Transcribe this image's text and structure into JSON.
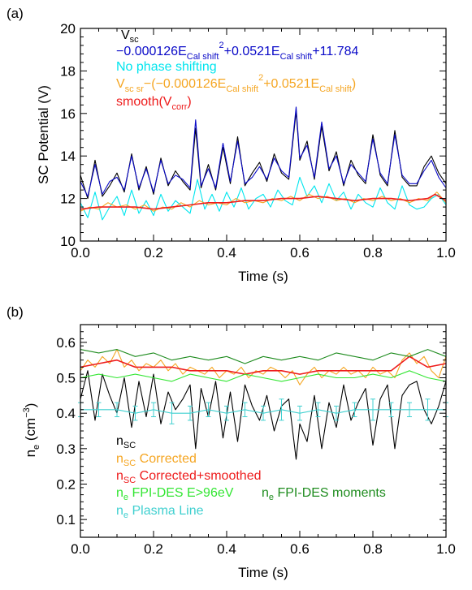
{
  "chart_data": [
    {
      "type": "line",
      "panel_label": "(a)",
      "xlabel": "Time (s)",
      "ylabel": "SC Potential (V)",
      "xlim": [
        0,
        1
      ],
      "ylim": [
        10,
        20
      ],
      "xticks": [
        "0.0",
        "0.2",
        "0.4",
        "0.6",
        "0.8",
        "1.0"
      ],
      "yticks": [
        "10",
        "12",
        "14",
        "16",
        "18",
        "20"
      ],
      "legend_position": "top-left",
      "colors": {
        "vsc": "#000000",
        "cal": "#0a0ac8",
        "nophase": "#00e5ee",
        "corrected": "#f5a623",
        "smooth": "#ee1c1c"
      },
      "legend": {
        "vsc": {
          "main": "V",
          "sub": "sc"
        },
        "cal": {
          "t1": "−0.000126E",
          "s1": "Cal shift",
          "p1": "2",
          "t2": "+0.0521E",
          "s2": "Cal shift",
          "t3": "+11.784"
        },
        "nophase": "No phase shifting",
        "corrected": {
          "t1": "V",
          "s1": "sc sr",
          "t2": "−(−0.000126E",
          "s2": "Cal shift",
          "p2": "2",
          "t3": "+0.0521E",
          "s3": "Cal shift",
          "t4": ")"
        },
        "smooth": {
          "t1": "smooth(V",
          "s1": "corr",
          "t2": ")"
        }
      },
      "series": [
        {
          "key": "vsc",
          "x": [
            0.0,
            0.02,
            0.04,
            0.06,
            0.08,
            0.1,
            0.12,
            0.14,
            0.16,
            0.18,
            0.2,
            0.22,
            0.24,
            0.26,
            0.28,
            0.3,
            0.315,
            0.33,
            0.35,
            0.37,
            0.39,
            0.41,
            0.43,
            0.45,
            0.47,
            0.49,
            0.51,
            0.53,
            0.55,
            0.57,
            0.59,
            0.6,
            0.62,
            0.64,
            0.66,
            0.68,
            0.7,
            0.72,
            0.74,
            0.76,
            0.78,
            0.8,
            0.82,
            0.84,
            0.86,
            0.88,
            0.9,
            0.92,
            0.94,
            0.96,
            0.98,
            1.0
          ],
          "y": [
            13.1,
            12.0,
            13.8,
            12.1,
            12.6,
            13.2,
            12.3,
            14.1,
            12.4,
            13.5,
            12.2,
            13.9,
            12.6,
            13.3,
            12.8,
            12.4,
            15.3,
            12.5,
            13.6,
            12.4,
            14.4,
            12.7,
            14.9,
            12.6,
            13.2,
            13.7,
            12.8,
            14.1,
            13.2,
            12.9,
            16.1,
            13.8,
            14.7,
            12.9,
            15.4,
            13.3,
            14.2,
            12.6,
            13.8,
            13.1,
            12.7,
            15.0,
            13.1,
            12.6,
            15.2,
            13.0,
            12.6,
            12.6,
            13.5,
            14.0,
            13.2,
            12.7
          ]
        },
        {
          "key": "cal",
          "x": [
            0.0,
            0.02,
            0.04,
            0.06,
            0.08,
            0.1,
            0.12,
            0.14,
            0.16,
            0.18,
            0.2,
            0.22,
            0.24,
            0.26,
            0.28,
            0.3,
            0.315,
            0.33,
            0.35,
            0.37,
            0.39,
            0.41,
            0.43,
            0.45,
            0.47,
            0.49,
            0.51,
            0.53,
            0.55,
            0.57,
            0.59,
            0.6,
            0.62,
            0.64,
            0.66,
            0.68,
            0.7,
            0.72,
            0.74,
            0.76,
            0.78,
            0.8,
            0.82,
            0.84,
            0.86,
            0.88,
            0.9,
            0.92,
            0.94,
            0.96,
            0.98,
            1.0
          ],
          "y": [
            12.8,
            12.1,
            13.6,
            12.2,
            12.8,
            13.0,
            12.4,
            14.0,
            12.5,
            13.4,
            12.3,
            13.8,
            12.7,
            13.1,
            12.9,
            12.5,
            15.7,
            12.6,
            13.4,
            12.5,
            14.6,
            12.8,
            14.7,
            12.7,
            13.0,
            13.5,
            12.9,
            13.9,
            13.3,
            13.0,
            16.3,
            13.9,
            14.5,
            13.0,
            15.6,
            13.4,
            14.0,
            12.7,
            13.6,
            13.2,
            12.8,
            14.8,
            13.2,
            12.7,
            15.0,
            13.1,
            12.7,
            12.7,
            13.3,
            13.8,
            13.0,
            12.5
          ]
        },
        {
          "key": "nophase",
          "x": [
            0.0,
            0.02,
            0.04,
            0.06,
            0.08,
            0.1,
            0.12,
            0.14,
            0.16,
            0.18,
            0.2,
            0.22,
            0.24,
            0.26,
            0.28,
            0.3,
            0.32,
            0.34,
            0.36,
            0.38,
            0.4,
            0.42,
            0.44,
            0.46,
            0.48,
            0.5,
            0.52,
            0.54,
            0.56,
            0.58,
            0.6,
            0.62,
            0.64,
            0.66,
            0.68,
            0.7,
            0.72,
            0.74,
            0.76,
            0.78,
            0.8,
            0.82,
            0.84,
            0.86,
            0.88,
            0.9,
            0.92,
            0.94,
            0.96,
            0.98,
            1.0
          ],
          "y": [
            11.8,
            11.1,
            12.3,
            11.0,
            11.6,
            12.1,
            11.2,
            12.4,
            11.3,
            11.9,
            11.2,
            12.2,
            11.4,
            11.9,
            11.6,
            11.3,
            12.9,
            11.5,
            12.2,
            11.4,
            12.3,
            11.6,
            12.5,
            11.5,
            12.0,
            12.2,
            11.6,
            12.4,
            11.9,
            11.7,
            13.0,
            12.1,
            12.6,
            11.8,
            12.7,
            11.9,
            12.3,
            11.5,
            12.2,
            11.8,
            11.6,
            12.5,
            11.8,
            11.5,
            12.6,
            11.7,
            11.5,
            11.6,
            12.0,
            12.2,
            11.7
          ]
        },
        {
          "key": "corrected",
          "x": [
            0.0,
            0.025,
            0.05,
            0.075,
            0.1,
            0.125,
            0.15,
            0.175,
            0.2,
            0.225,
            0.25,
            0.275,
            0.3,
            0.325,
            0.35,
            0.375,
            0.4,
            0.425,
            0.45,
            0.475,
            0.5,
            0.525,
            0.55,
            0.575,
            0.6,
            0.625,
            0.65,
            0.675,
            0.7,
            0.725,
            0.75,
            0.775,
            0.8,
            0.825,
            0.85,
            0.875,
            0.9,
            0.925,
            0.95,
            0.975,
            1.0
          ],
          "y": [
            11.4,
            11.6,
            11.5,
            11.8,
            11.6,
            11.7,
            11.5,
            11.7,
            11.4,
            11.6,
            11.5,
            11.8,
            11.6,
            11.9,
            11.7,
            11.8,
            11.7,
            12.0,
            11.8,
            11.9,
            11.8,
            12.0,
            11.9,
            12.1,
            11.9,
            12.2,
            12.0,
            12.1,
            11.9,
            12.0,
            11.8,
            12.0,
            11.9,
            12.1,
            11.9,
            12.0,
            11.8,
            12.0,
            11.9,
            12.3,
            11.8
          ]
        },
        {
          "key": "smooth",
          "x": [
            0.0,
            0.05,
            0.1,
            0.15,
            0.2,
            0.25,
            0.3,
            0.35,
            0.4,
            0.45,
            0.5,
            0.55,
            0.6,
            0.65,
            0.7,
            0.75,
            0.8,
            0.85,
            0.9,
            0.95,
            0.97,
            1.0
          ],
          "y": [
            11.5,
            11.6,
            11.6,
            11.6,
            11.5,
            11.6,
            11.7,
            11.8,
            11.8,
            11.9,
            11.9,
            12.0,
            12.0,
            12.1,
            12.0,
            11.9,
            12.0,
            12.0,
            11.9,
            12.0,
            12.2,
            11.9
          ]
        }
      ]
    },
    {
      "type": "line",
      "panel_label": "(b)",
      "xlabel": "Time (s)",
      "ylabel": {
        "t1": "n",
        "s1": "e",
        "t2": " (cm",
        "p2": "−3",
        "t3": ")"
      },
      "xlim": [
        0,
        1
      ],
      "ylim": [
        0.05,
        0.65
      ],
      "xticks": [
        "0.0",
        "0.2",
        "0.4",
        "0.6",
        "0.8",
        "1.0"
      ],
      "yticks": [
        "0.1",
        "0.2",
        "0.3",
        "0.4",
        "0.5",
        "0.6"
      ],
      "legend_position": "bottom-left",
      "colors": {
        "nsc": "#000000",
        "corrected": "#f5a623",
        "smoothed": "#ee1c1c",
        "fpi_e96": "#33e633",
        "fpi_moments": "#1f8c1f",
        "plasma_line": "#40d0d0"
      },
      "legend": {
        "nsc": {
          "t1": "n",
          "s1": "SC"
        },
        "corrected": {
          "t1": "n",
          "s1": "SC",
          "t2": " Corrected"
        },
        "smoothed": {
          "t1": "n",
          "s1": "SC",
          "t2": " Corrected+smoothed"
        },
        "fpi_e96": {
          "t1": "n",
          "s1": "e",
          "t2": " FPI-DES E>96eV"
        },
        "fpi_moments": {
          "t1": "n",
          "s1": "e",
          "t2": " FPI-DES moments"
        },
        "plasma_line": {
          "t1": "n",
          "s1": "e",
          "t2": " Plasma Line"
        }
      },
      "series": [
        {
          "key": "nsc",
          "x": [
            0.0,
            0.02,
            0.04,
            0.06,
            0.08,
            0.1,
            0.12,
            0.14,
            0.16,
            0.18,
            0.2,
            0.22,
            0.24,
            0.26,
            0.28,
            0.3,
            0.315,
            0.33,
            0.35,
            0.37,
            0.39,
            0.41,
            0.43,
            0.45,
            0.47,
            0.49,
            0.51,
            0.53,
            0.55,
            0.57,
            0.59,
            0.6,
            0.62,
            0.64,
            0.66,
            0.68,
            0.7,
            0.72,
            0.74,
            0.76,
            0.78,
            0.8,
            0.82,
            0.84,
            0.86,
            0.88,
            0.9,
            0.92,
            0.94,
            0.96,
            0.98,
            1.0
          ],
          "y": [
            0.44,
            0.52,
            0.38,
            0.51,
            0.45,
            0.4,
            0.5,
            0.36,
            0.49,
            0.39,
            0.51,
            0.37,
            0.46,
            0.41,
            0.44,
            0.48,
            0.3,
            0.47,
            0.39,
            0.49,
            0.33,
            0.46,
            0.32,
            0.48,
            0.42,
            0.38,
            0.45,
            0.35,
            0.42,
            0.44,
            0.27,
            0.37,
            0.32,
            0.45,
            0.3,
            0.43,
            0.36,
            0.48,
            0.38,
            0.43,
            0.47,
            0.31,
            0.44,
            0.48,
            0.3,
            0.45,
            0.48,
            0.49,
            0.41,
            0.37,
            0.42,
            0.49
          ]
        },
        {
          "key": "corrected",
          "x": [
            0.0,
            0.02,
            0.04,
            0.06,
            0.08,
            0.1,
            0.12,
            0.14,
            0.16,
            0.18,
            0.2,
            0.22,
            0.24,
            0.26,
            0.28,
            0.3,
            0.32,
            0.34,
            0.36,
            0.38,
            0.4,
            0.42,
            0.44,
            0.46,
            0.48,
            0.5,
            0.52,
            0.54,
            0.56,
            0.58,
            0.6,
            0.62,
            0.64,
            0.66,
            0.68,
            0.7,
            0.72,
            0.74,
            0.76,
            0.78,
            0.8,
            0.82,
            0.84,
            0.86,
            0.88,
            0.9,
            0.92,
            0.94,
            0.96,
            0.98,
            1.0
          ],
          "y": [
            0.52,
            0.55,
            0.53,
            0.56,
            0.54,
            0.58,
            0.53,
            0.55,
            0.52,
            0.54,
            0.53,
            0.55,
            0.52,
            0.54,
            0.51,
            0.53,
            0.52,
            0.51,
            0.53,
            0.5,
            0.52,
            0.51,
            0.53,
            0.5,
            0.52,
            0.51,
            0.53,
            0.52,
            0.5,
            0.52,
            0.48,
            0.51,
            0.53,
            0.5,
            0.52,
            0.51,
            0.53,
            0.51,
            0.52,
            0.5,
            0.53,
            0.51,
            0.52,
            0.5,
            0.55,
            0.57,
            0.54,
            0.56,
            0.52,
            0.5,
            0.56
          ]
        },
        {
          "key": "smoothed",
          "x": [
            0.0,
            0.05,
            0.1,
            0.15,
            0.2,
            0.25,
            0.3,
            0.35,
            0.4,
            0.45,
            0.5,
            0.55,
            0.6,
            0.65,
            0.7,
            0.75,
            0.8,
            0.85,
            0.9,
            0.95,
            1.0
          ],
          "y": [
            0.53,
            0.54,
            0.55,
            0.53,
            0.53,
            0.53,
            0.52,
            0.52,
            0.52,
            0.51,
            0.52,
            0.52,
            0.51,
            0.52,
            0.52,
            0.52,
            0.52,
            0.52,
            0.56,
            0.53,
            0.54
          ]
        },
        {
          "key": "fpi_e96",
          "x": [
            0.0,
            0.05,
            0.1,
            0.15,
            0.2,
            0.25,
            0.3,
            0.35,
            0.4,
            0.45,
            0.5,
            0.55,
            0.6,
            0.65,
            0.7,
            0.75,
            0.8,
            0.85,
            0.9,
            0.95,
            1.0
          ],
          "y": [
            0.5,
            0.51,
            0.5,
            0.51,
            0.5,
            0.49,
            0.51,
            0.5,
            0.49,
            0.51,
            0.5,
            0.49,
            0.5,
            0.51,
            0.5,
            0.5,
            0.51,
            0.5,
            0.52,
            0.5,
            0.49
          ]
        },
        {
          "key": "fpi_moments",
          "x": [
            0.0,
            0.05,
            0.1,
            0.15,
            0.2,
            0.25,
            0.3,
            0.35,
            0.4,
            0.45,
            0.5,
            0.55,
            0.6,
            0.65,
            0.7,
            0.75,
            0.8,
            0.85,
            0.9,
            0.95,
            1.0
          ],
          "y": [
            0.58,
            0.57,
            0.58,
            0.56,
            0.57,
            0.55,
            0.56,
            0.55,
            0.56,
            0.54,
            0.56,
            0.55,
            0.56,
            0.55,
            0.57,
            0.56,
            0.55,
            0.57,
            0.56,
            0.58,
            0.56
          ]
        },
        {
          "key": "plasma_line",
          "x": [
            0.0,
            0.05,
            0.1,
            0.15,
            0.2,
            0.25,
            0.3,
            0.35,
            0.4,
            0.45,
            0.5,
            0.55,
            0.6,
            0.65,
            0.7,
            0.75,
            0.8,
            0.85,
            0.9,
            0.95,
            1.0
          ],
          "y": [
            0.41,
            0.41,
            0.41,
            0.4,
            0.41,
            0.4,
            0.4,
            0.41,
            0.4,
            0.41,
            0.4,
            0.41,
            0.4,
            0.41,
            0.4,
            0.41,
            0.41,
            0.41,
            0.41,
            0.41,
            0.41
          ],
          "err": [
            0.02,
            0.02,
            0.02,
            0.02,
            0.02,
            0.03,
            0.02,
            0.02,
            0.02,
            0.02,
            0.02,
            0.03,
            0.02,
            0.02,
            0.02,
            0.02,
            0.03,
            0.02,
            0.02,
            0.03,
            0.02
          ]
        }
      ]
    }
  ]
}
